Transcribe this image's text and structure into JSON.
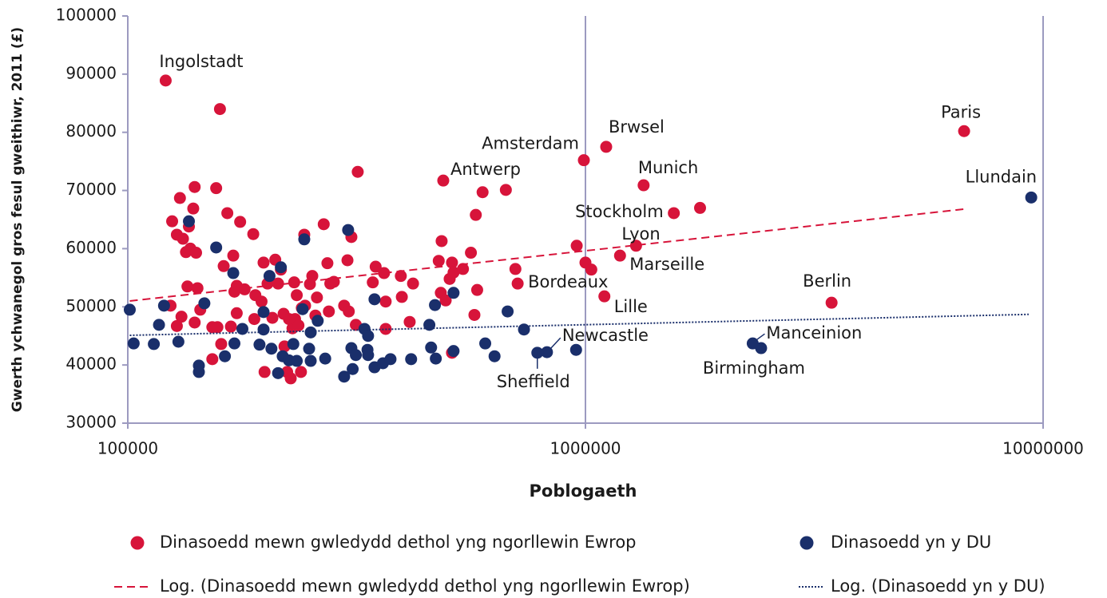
{
  "chart_data": {
    "type": "scatter",
    "xlabel": "Poblogaeth",
    "ylabel": "Gwerth ychwanegol gros fesul gweithiwr, 2011 (£)",
    "xscale": "log",
    "xlim": [
      100000,
      10000000
    ],
    "xticks": [
      100000,
      1000000,
      10000000
    ],
    "ylim": [
      30000,
      100000
    ],
    "yticks": [
      30000,
      40000,
      50000,
      60000,
      70000,
      80000,
      90000,
      100000
    ],
    "grid": "x",
    "legend": "bottom",
    "series": [
      {
        "name": "Dinasoedd mewn gwledydd dethol yng ngorllewin Ewrop",
        "color": "#d7143a",
        "marker": "circle",
        "labels": [
          "Ingolstadt",
          "Paris",
          "Amsterdam",
          "Brwsel",
          "Antwerp",
          "Munich",
          "Stockholm",
          "Lyon",
          "Marseille",
          "Bordeaux",
          "Lille",
          "Berlin"
        ],
        "x": [
          121000,
          6720000,
          992000,
          1110000,
          489000,
          1340000,
          1560000,
          1290000,
          1190000,
          711000,
          1100000,
          3450000,
          1780000,
          124000,
          125000,
          128000,
          130000,
          132000,
          134000,
          136000,
          137000,
          140000,
          139000,
          141000,
          135000,
          142000,
          144000,
          140000,
          128000,
          131000,
          156000,
          159000,
          165000,
          176000,
          188000,
          170000,
          162000,
          173000,
          180000,
          171000,
          168000,
          173000,
          157000,
          153000,
          160000,
          153000,
          198000,
          202000,
          210000,
          213000,
          216000,
          190000,
          196000,
          189000,
          207000,
          219000,
          225000,
          229000,
          232000,
          236000,
          220000,
          199000,
          223000,
          239000,
          227000,
          243000,
          231000,
          234000,
          240000,
          250000,
          253000,
          244000,
          257000,
          259000,
          268000,
          273000,
          277000,
          282000,
          275000,
          302000,
          308000,
          318000,
          297000,
          304000,
          315000,
          343000,
          348000,
          363000,
          366000,
          366000,
          395000,
          397000,
          413000,
          420000,
          478000,
          483000,
          485000,
          495000,
          505000,
          511000,
          515000,
          511000,
          540000,
          562000,
          576000,
          596000,
          580000,
          572000,
          670000,
          703000,
          957000,
          1000000,
          1030000
        ],
        "values": [
          88900,
          80200,
          75200,
          77500,
          71700,
          70900,
          66100,
          60500,
          58800,
          54000,
          51800,
          50700,
          67000,
          50200,
          64700,
          62400,
          68700,
          61700,
          59400,
          63800,
          60000,
          70600,
          66900,
          59300,
          53500,
          53200,
          49500,
          47300,
          46700,
          48300,
          70400,
          84000,
          66100,
          64600,
          62500,
          58800,
          57000,
          53600,
          53000,
          52600,
          46600,
          48900,
          46500,
          46500,
          43600,
          41000,
          57600,
          54000,
          58100,
          54000,
          56400,
          52000,
          50900,
          47900,
          48100,
          48800,
          47900,
          46300,
          47900,
          46800,
          43200,
          38800,
          38800,
          38800,
          37700,
          62400,
          54200,
          52000,
          49800,
          53900,
          55300,
          50200,
          48500,
          51600,
          64200,
          57500,
          54000,
          54300,
          49200,
          58000,
          62000,
          73200,
          50200,
          49200,
          46900,
          54200,
          56900,
          55800,
          50900,
          46200,
          55300,
          51700,
          47400,
          54000,
          57900,
          52400,
          61300,
          51100,
          54800,
          57600,
          55900,
          42100,
          56500,
          59300,
          65800,
          69700,
          52900,
          48600,
          70100,
          56500,
          60500,
          57600,
          56400
        ]
      },
      {
        "name": "Dinasoedd yn y DU",
        "color": "#1a2f6b",
        "marker": "circle",
        "labels": [
          "Llundain",
          "Manceinion",
          "Birmingham",
          "Newcastle",
          "Sheffield"
        ],
        "x": [
          9420000,
          2320000,
          2420000,
          824000,
          785000,
          101000,
          103000,
          114000,
          117000,
          120000,
          129000,
          136000,
          143000,
          143000,
          147000,
          156000,
          163000,
          171000,
          170000,
          178000,
          194000,
          198000,
          198000,
          204000,
          206000,
          216000,
          213000,
          218000,
          225000,
          230000,
          234000,
          241000,
          243000,
          249000,
          251000,
          251000,
          260000,
          270000,
          297000,
          303000,
          308000,
          310000,
          315000,
          334000,
          335000,
          346000,
          329000,
          335000,
          346000,
          361000,
          375000,
          416000,
          456000,
          460000,
          469000,
          471000,
          515000,
          515000,
          604000,
          633000,
          676000,
          734000,
          954000
        ],
        "values": [
          68800,
          43700,
          42900,
          42200,
          42100,
          49500,
          43700,
          43600,
          46900,
          50200,
          44000,
          64700,
          39900,
          38800,
          50600,
          60200,
          41500,
          43700,
          55800,
          46200,
          43500,
          49100,
          46100,
          55300,
          42800,
          56800,
          38600,
          41500,
          40800,
          43600,
          40700,
          49600,
          61600,
          42800,
          45600,
          40700,
          47600,
          41100,
          38000,
          63200,
          42900,
          39300,
          41700,
          42600,
          41700,
          51300,
          46200,
          45000,
          39600,
          40300,
          41000,
          41000,
          46900,
          43000,
          50300,
          41100,
          52400,
          42400,
          43700,
          41500,
          49200,
          46100,
          42600
        ]
      },
      {
        "name": "Log. (Dinasoedd mewn gwledydd dethol yng ngorllewin Ewrop)",
        "color": "#d7143a",
        "line_style": "dashed",
        "x": [
          101000,
          6720000
        ],
        "values": [
          51000,
          66800
        ]
      },
      {
        "name": "Log. (Dinasoedd yn y DU)",
        "color": "#1a2f6b",
        "line_style": "dotted",
        "x": [
          101000,
          9300000
        ],
        "values": [
          45100,
          48700
        ]
      }
    ]
  }
}
